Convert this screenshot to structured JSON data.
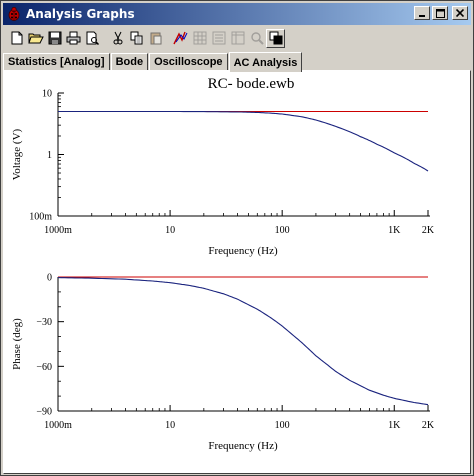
{
  "window": {
    "title": "Analysis Graphs",
    "title_bar_color": "#0a246a"
  },
  "toolbar": {
    "buttons": [
      {
        "icon": "new-icon"
      },
      {
        "icon": "open-icon"
      },
      {
        "icon": "save-icon"
      },
      {
        "icon": "print-icon"
      },
      {
        "icon": "print-preview-icon"
      },
      {
        "icon": "cut-icon"
      },
      {
        "icon": "copy-icon"
      },
      {
        "icon": "paste-icon"
      },
      {
        "icon": "cursor-icon"
      },
      {
        "icon": "grid-icon"
      },
      {
        "icon": "legend-icon"
      },
      {
        "icon": "data-icon"
      },
      {
        "icon": "zoom-icon"
      },
      {
        "icon": "reverse-colors-icon"
      }
    ]
  },
  "tabs": [
    {
      "label": "Statistics [Analog]"
    },
    {
      "label": "Bode"
    },
    {
      "label": "Oscilloscope"
    },
    {
      "label": "AC Analysis"
    }
  ],
  "active_tab": "AC Analysis",
  "colors": {
    "magnitude_trace": "#1a237e",
    "reference_line": "#cc0000"
  },
  "chart_data": [
    {
      "type": "line",
      "title": "RC- bode.ewb",
      "xlabel": "Frequency (Hz)",
      "ylabel": "Voltage (V)",
      "xscale": "log",
      "yscale": "log",
      "xlim": [
        1,
        2000
      ],
      "ylim": [
        0.1,
        10
      ],
      "xtick_labels": [
        "1000m",
        "10",
        "100",
        "1K",
        "2K"
      ],
      "xtick_values": [
        1,
        10,
        100,
        1000,
        2000
      ],
      "ytick_labels": [
        "10",
        "1",
        "100m"
      ],
      "ytick_values": [
        10,
        1,
        0.1
      ],
      "grid": false,
      "series": [
        {
          "x": [
            1,
            3,
            10,
            20,
            40,
            60,
            80,
            100,
            150,
            200,
            300,
            500,
            700,
            1000,
            1500,
            2000
          ],
          "values": [
            5,
            5,
            5,
            4.98,
            4.92,
            4.83,
            4.7,
            4.55,
            4.1,
            3.64,
            2.86,
            1.95,
            1.47,
            1.06,
            0.72,
            0.54
          ]
        },
        {
          "x": [
            1,
            2000
          ],
          "values": [
            5,
            5
          ]
        }
      ]
    },
    {
      "type": "line",
      "title": "",
      "xlabel": "Frequency (Hz)",
      "ylabel": "Phase (deg)",
      "xscale": "log",
      "xlim": [
        1,
        2000
      ],
      "ylim": [
        -90,
        0
      ],
      "xtick_labels": [
        "1000m",
        "10",
        "100",
        "1K",
        "2K"
      ],
      "xtick_values": [
        1,
        10,
        100,
        1000,
        2000
      ],
      "ytick_labels": [
        "0",
        "−30",
        "−60",
        "−90"
      ],
      "ytick_values": [
        0,
        -30,
        -60,
        -90
      ],
      "grid": false,
      "series": [
        {
          "x": [
            1,
            2,
            4,
            7,
            10,
            15,
            20,
            30,
            40,
            60,
            80,
            100,
            150,
            200,
            300,
            400,
            600,
            800,
            1000,
            1500,
            2000
          ],
          "values": [
            -0.4,
            -0.8,
            -1.5,
            -2.7,
            -3.8,
            -5.7,
            -7.6,
            -11.3,
            -14.9,
            -21.6,
            -27.6,
            -32.9,
            -44.1,
            -52.9,
            -63.4,
            -69.4,
            -76.0,
            -79.4,
            -81.5,
            -84.3,
            -85.7
          ]
        },
        {
          "x": [
            1,
            2000
          ],
          "values": [
            0,
            0
          ]
        }
      ]
    }
  ]
}
